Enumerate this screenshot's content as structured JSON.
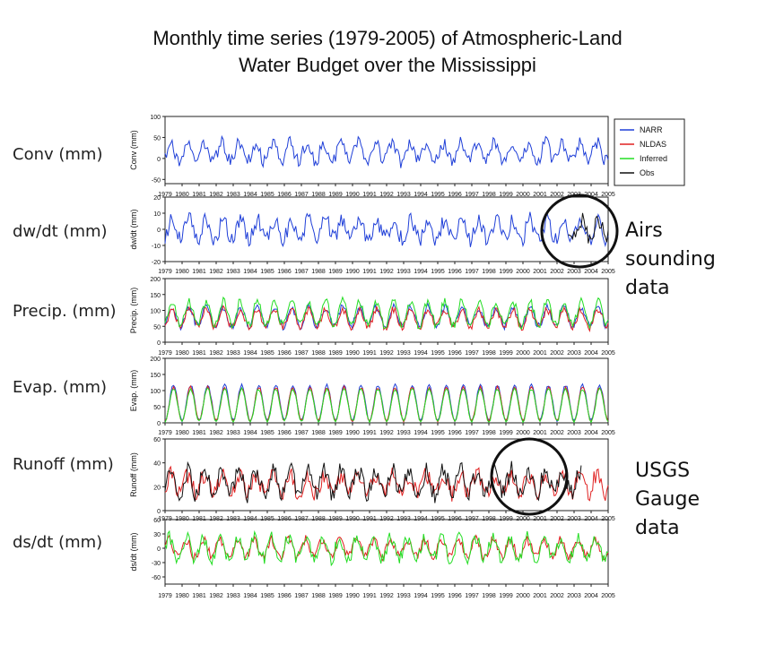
{
  "title_line1": "Monthly time series (1979-2005) of Atmospheric-Land",
  "title_line2": "Water Budget over the Mississippi",
  "row_labels": [
    "Conv (mm)",
    "dw/dt (mm)",
    "Precip. (mm)",
    "Evap. (mm)",
    "Runoff (mm)",
    "ds/dt (mm)"
  ],
  "annotations": {
    "airs": [
      "Airs",
      "sounding",
      "data"
    ],
    "usgs": [
      "USGS",
      "Gauge",
      "data"
    ]
  },
  "colors": {
    "NARR": "#1f3fd8",
    "NLDAS": "#e02020",
    "Inferred": "#22dd22",
    "Obs": "#111111"
  },
  "chart_data": {
    "type": "line",
    "x_range": [
      "1979-01",
      "2005-01"
    ],
    "x_ticks": [
      "1979",
      "1980",
      "1981",
      "1982",
      "1983",
      "1984",
      "1985",
      "1986",
      "1987",
      "1988",
      "1989",
      "1990",
      "1991",
      "1992",
      "1993",
      "1994",
      "1995",
      "1996",
      "1997",
      "1998",
      "1999",
      "2000",
      "2001",
      "2002",
      "2003",
      "2004",
      "2005"
    ],
    "legend": {
      "placement": "top-right",
      "entries": [
        "NARR",
        "NLDAS",
        "Inferred",
        "Obs"
      ]
    },
    "panels": [
      {
        "ylabel": "Conv (mm)",
        "ylim": [
          -60,
          100
        ],
        "yticks": [
          "100",
          "50",
          "0",
          "-50"
        ],
        "series": [
          {
            "name": "NARR",
            "seasonal": {
              "mean": 15,
              "amplitude": 22,
              "peak_month": 4,
              "noise": 16
            }
          }
        ]
      },
      {
        "ylabel": "dw/dt (mm)",
        "ylim": [
          -20,
          20
        ],
        "yticks": [
          "20",
          "10",
          "0",
          "-10",
          "-20"
        ],
        "series": [
          {
            "name": "NARR",
            "seasonal": {
              "mean": 0,
              "amplitude": 6,
              "peak_month": 5,
              "noise": 5
            }
          },
          {
            "name": "Obs",
            "from": "2002-09",
            "seasonal": {
              "mean": 0,
              "amplitude": 6,
              "peak_month": 5,
              "noise": 5
            }
          }
        ]
      },
      {
        "ylabel": "Precip. (mm)",
        "ylim": [
          0,
          200
        ],
        "yticks": [
          "200",
          "150",
          "100",
          "50",
          "0"
        ],
        "series": [
          {
            "name": "NARR",
            "seasonal": {
              "mean": 80,
              "amplitude": 30,
              "peak_month": 5,
              "noise": 12
            }
          },
          {
            "name": "NLDAS",
            "seasonal": {
              "mean": 75,
              "amplitude": 28,
              "peak_month": 5,
              "noise": 12
            }
          },
          {
            "name": "Inferred",
            "seasonal": {
              "mean": 90,
              "amplitude": 38,
              "peak_month": 5,
              "noise": 14
            }
          }
        ]
      },
      {
        "ylabel": "Evap. (mm)",
        "ylim": [
          0,
          200
        ],
        "yticks": [
          "200",
          "150",
          "100",
          "50",
          "0"
        ],
        "series": [
          {
            "name": "NARR",
            "seasonal": {
              "mean": 62,
              "amplitude": 55,
              "peak_month": 6,
              "noise": 4
            }
          },
          {
            "name": "NLDAS",
            "seasonal": {
              "mean": 58,
              "amplitude": 52,
              "peak_month": 6,
              "noise": 4
            }
          },
          {
            "name": "Inferred",
            "seasonal": {
              "mean": 55,
              "amplitude": 50,
              "peak_month": 6,
              "noise": 4
            }
          }
        ]
      },
      {
        "ylabel": "Runoff (mm)",
        "ylim": [
          0,
          60
        ],
        "yticks": [
          "60",
          "40",
          "20",
          "0"
        ],
        "series": [
          {
            "name": "NLDAS",
            "seasonal": {
              "mean": 22,
              "amplitude": 8,
              "peak_month": 4,
              "noise": 7
            }
          },
          {
            "name": "Obs",
            "to": "2003-06",
            "seasonal": {
              "mean": 24,
              "amplitude": 10,
              "peak_month": 4,
              "noise": 8
            }
          }
        ]
      },
      {
        "ylabel": "ds/dt (mm)",
        "ylim": [
          -75,
          60
        ],
        "yticks": [
          "60",
          "30",
          "0",
          "-30",
          "-60"
        ],
        "series": [
          {
            "name": "NLDAS",
            "seasonal": {
              "mean": 0,
              "amplitude": 18,
              "peak_month": 3,
              "noise": 10
            }
          },
          {
            "name": "Inferred",
            "seasonal": {
              "mean": 0,
              "amplitude": 22,
              "peak_month": 3,
              "noise": 14
            }
          }
        ]
      }
    ]
  }
}
